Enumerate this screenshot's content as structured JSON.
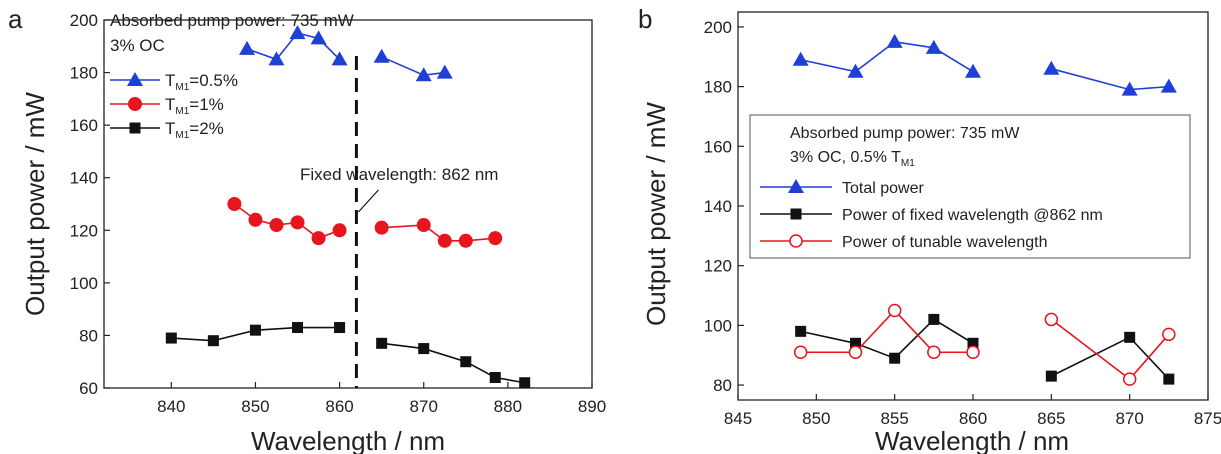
{
  "chart_data": [
    {
      "panel": "a",
      "type": "line",
      "xlabel": "Wavelength / nm",
      "ylabel": "Output power / mW",
      "xlim": [
        832,
        890
      ],
      "ylim": [
        60,
        200
      ],
      "xticks": [
        840,
        850,
        860,
        870,
        880,
        890
      ],
      "yticks": [
        60,
        80,
        100,
        120,
        140,
        160,
        180,
        200
      ],
      "annotation_lines": [
        "Absorbed pump power: 735 mW",
        "3% OC"
      ],
      "fixed_line": {
        "x": 862,
        "label": "Fixed wavelength: 862 nm"
      },
      "legend_position": "top-left",
      "series": [
        {
          "name": "T",
          "name_sub": "M1",
          "name_suffix": "=0.5%",
          "color": "#1f3fd6",
          "marker": "triangle",
          "segments": [
            [
              [
                849,
                189
              ],
              [
                852.5,
                185
              ],
              [
                855,
                195
              ],
              [
                857.5,
                193
              ],
              [
                860,
                185
              ]
            ],
            [
              [
                865,
                186
              ],
              [
                870,
                179
              ],
              [
                872.5,
                180
              ]
            ]
          ]
        },
        {
          "name": "T",
          "name_sub": "M1",
          "name_suffix": "=1%",
          "color": "#e8141e",
          "marker": "circle",
          "segments": [
            [
              [
                847.5,
                130
              ],
              [
                850,
                124
              ],
              [
                852.5,
                122
              ],
              [
                855,
                123
              ],
              [
                857.5,
                117
              ],
              [
                860,
                120
              ]
            ],
            [
              [
                865,
                121
              ],
              [
                870,
                122
              ],
              [
                872.5,
                116
              ],
              [
                875,
                116
              ],
              [
                878.5,
                117
              ]
            ]
          ]
        },
        {
          "name": "T",
          "name_sub": "M1",
          "name_suffix": "=2%",
          "color": "#111111",
          "marker": "square",
          "segments": [
            [
              [
                840,
                79
              ],
              [
                845,
                78
              ],
              [
                850,
                82
              ],
              [
                855,
                83
              ],
              [
                860,
                83
              ]
            ],
            [
              [
                865,
                77
              ],
              [
                870,
                75
              ],
              [
                875,
                70
              ],
              [
                878.5,
                64
              ],
              [
                882,
                62
              ]
            ]
          ]
        }
      ]
    },
    {
      "panel": "b",
      "type": "line",
      "xlabel": "Wavelength / nm",
      "ylabel": "Output power / mW",
      "xlim": [
        845,
        875
      ],
      "ylim": [
        75,
        205
      ],
      "xticks": [
        845,
        850,
        855,
        860,
        865,
        870,
        875
      ],
      "yticks": [
        80,
        100,
        120,
        140,
        160,
        180,
        200
      ],
      "annotation_lines": [
        "Absorbed pump power: 735 mW",
        "3% OC, 0.5% T",
        "M1"
      ],
      "legend_position": "center-right",
      "series": [
        {
          "name": "Total power",
          "color": "#1f3fd6",
          "marker": "triangle",
          "segments": [
            [
              [
                849,
                189
              ],
              [
                852.5,
                185
              ],
              [
                855,
                195
              ],
              [
                857.5,
                193
              ],
              [
                860,
                185
              ]
            ],
            [
              [
                865,
                186
              ],
              [
                870,
                179
              ],
              [
                872.5,
                180
              ]
            ]
          ]
        },
        {
          "name": "Power of fixed wavelength @862 nm",
          "color": "#111111",
          "marker": "square",
          "line_color": "#111111",
          "segments": [
            [
              [
                849,
                98
              ],
              [
                852.5,
                94
              ],
              [
                855,
                89
              ],
              [
                857.5,
                102
              ],
              [
                860,
                94
              ]
            ],
            [
              [
                865,
                83
              ],
              [
                870,
                96
              ],
              [
                872.5,
                82
              ]
            ]
          ]
        },
        {
          "name": "Power of tunable wavelength",
          "color": "#111111",
          "marker": "open-circle",
          "line_color": "#e8141e",
          "segments": [
            [
              [
                849,
                91
              ],
              [
                852.5,
                91
              ],
              [
                855,
                105
              ],
              [
                857.5,
                91
              ],
              [
                860,
                91
              ]
            ],
            [
              [
                865,
                102
              ],
              [
                870,
                82
              ],
              [
                872.5,
                97
              ]
            ]
          ]
        }
      ]
    }
  ]
}
